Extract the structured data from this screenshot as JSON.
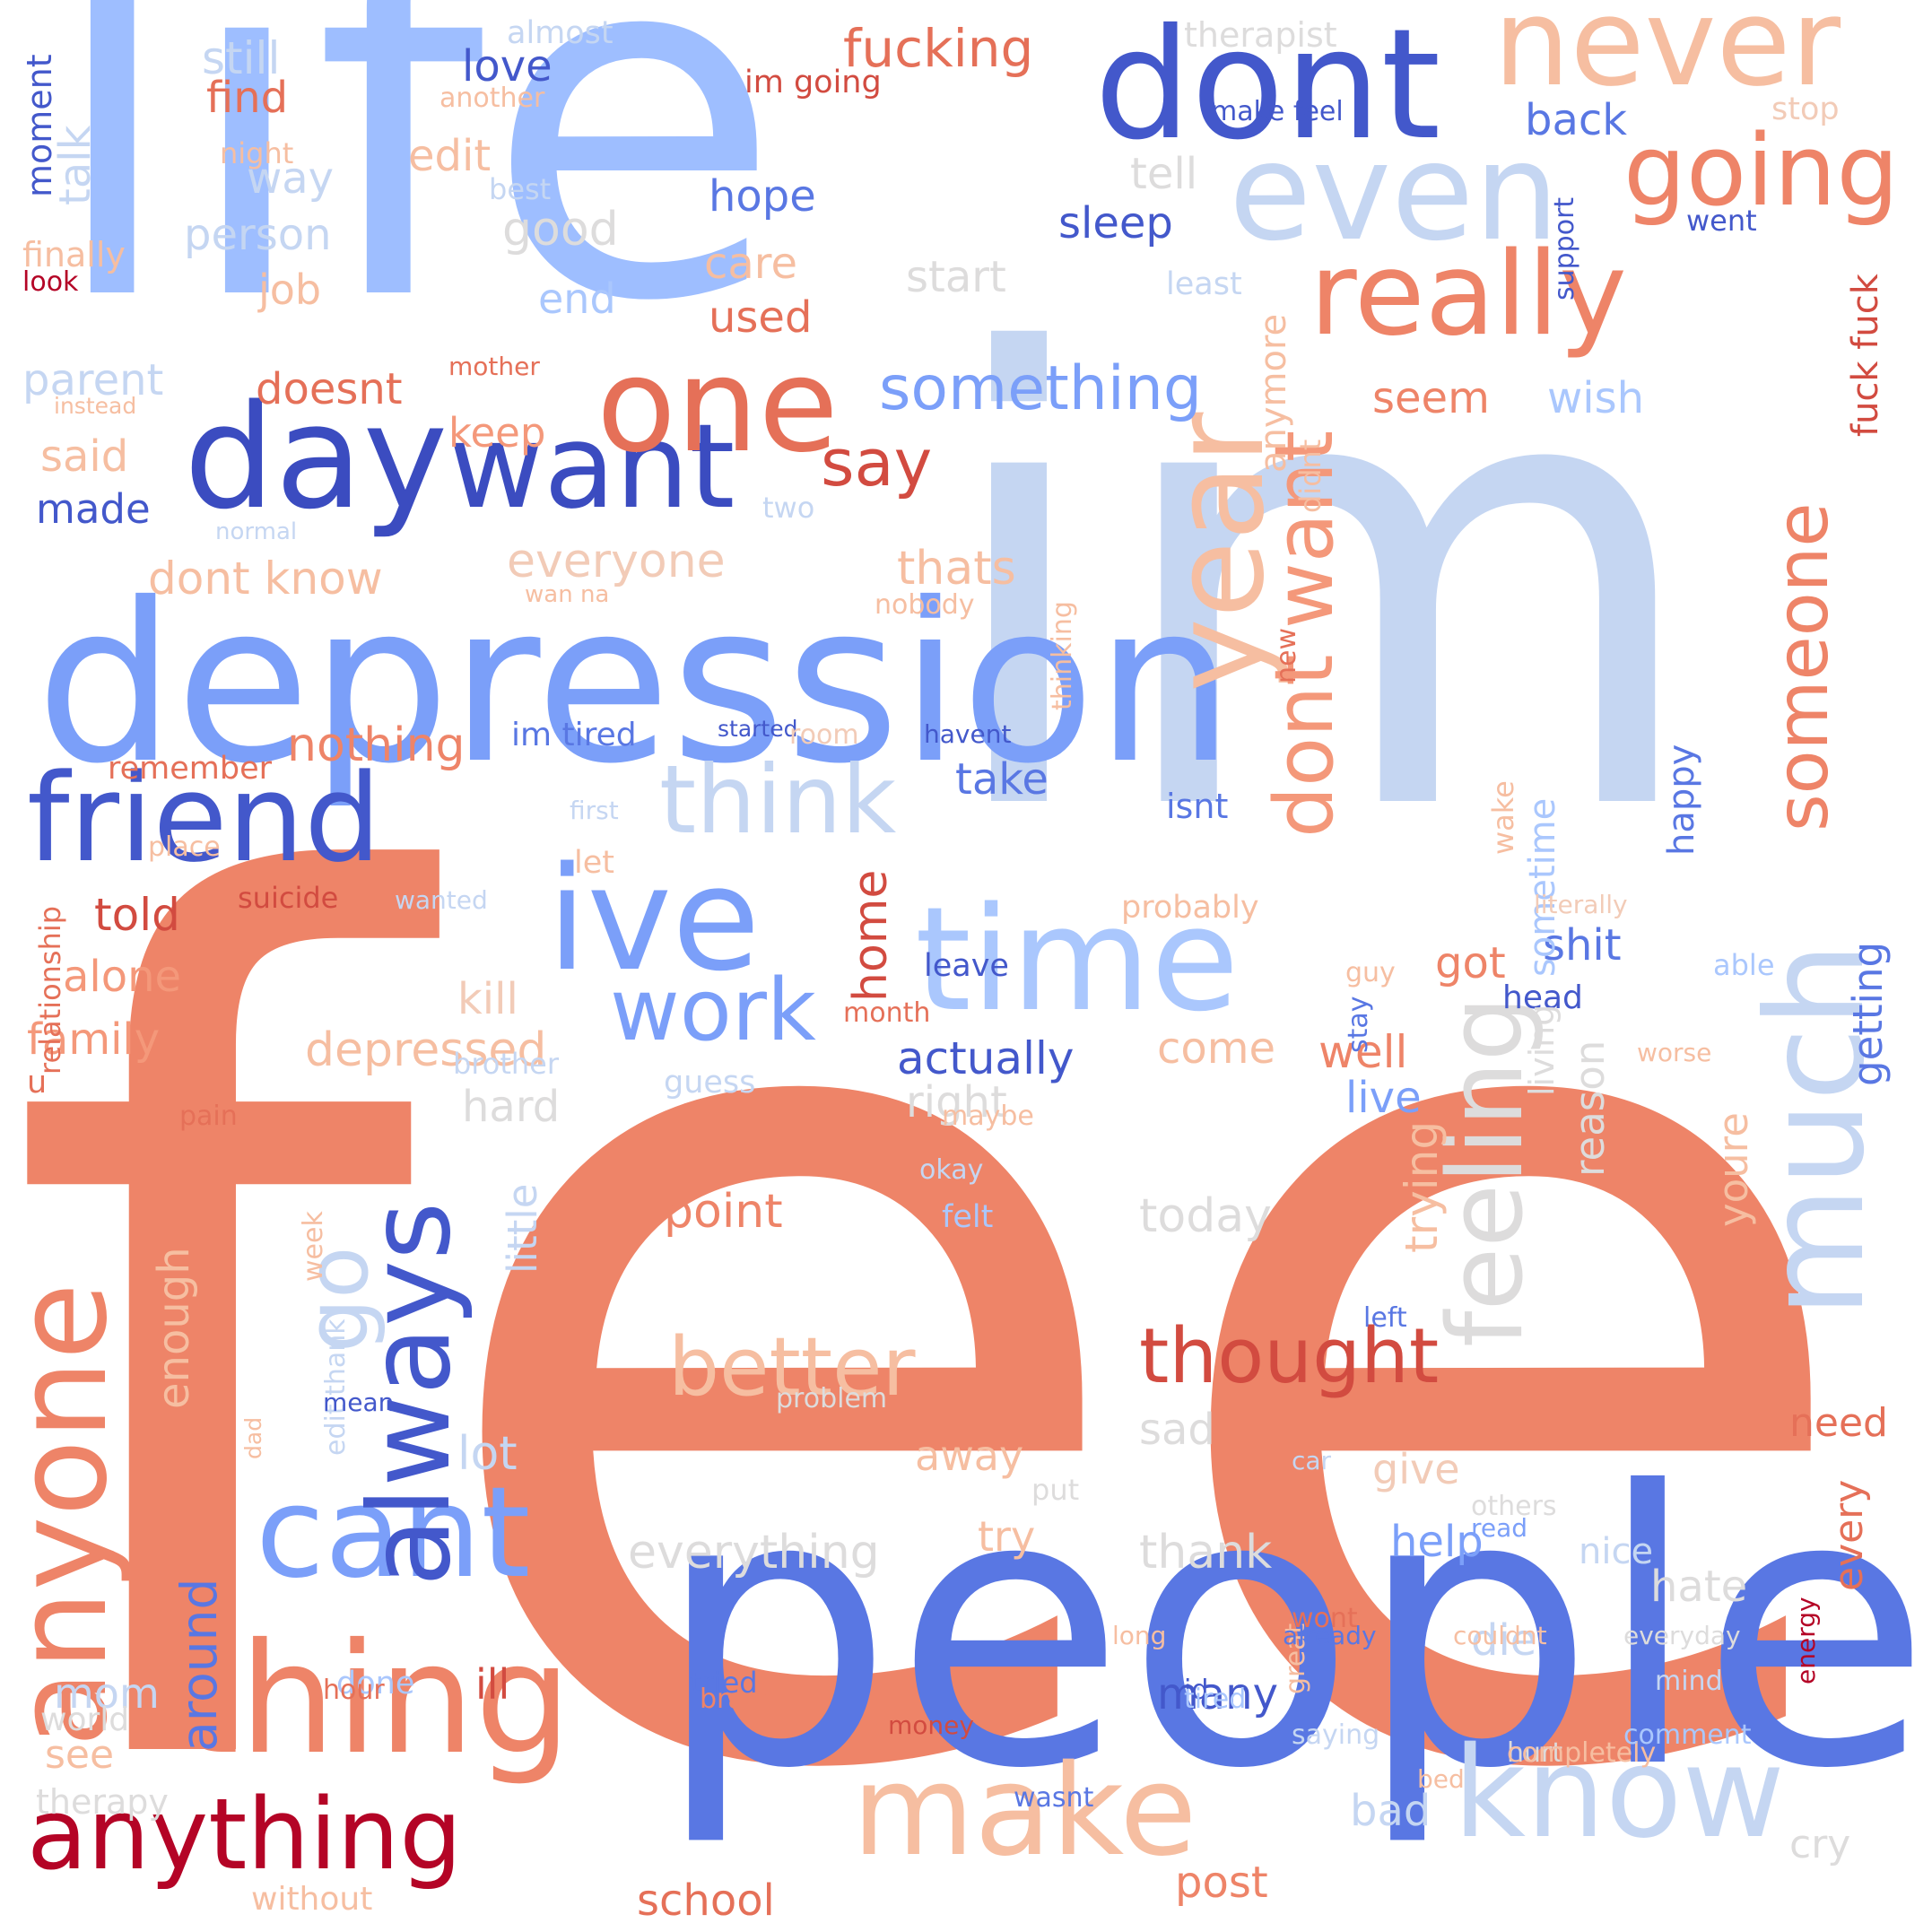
{
  "colors": {
    "background": "#ffffff",
    "palette": "coolwarm",
    "dark_red": "#b40426",
    "red": "#d24b40",
    "salmon": "#ee8468",
    "light_salmon": "#f4987a",
    "peach": "#f6bea1",
    "pale_peach": "#f2cbb7",
    "grey": "#dddcdc",
    "pale_blue": "#c5d6f2",
    "light_blue": "#9ebeff",
    "blue": "#7b9ff9",
    "mid_blue": "#5977e3",
    "royal_blue": "#4358cb",
    "dark_blue": "#3b4cc0"
  },
  "words": [
    {
      "text": "feel",
      "color": "#ee8468"
    },
    {
      "text": "im",
      "color": "#c5d6f2"
    },
    {
      "text": "life",
      "color": "#9ebeff"
    },
    {
      "text": "people",
      "color": "#5977e3"
    },
    {
      "text": "depression",
      "color": "#7b9ff9"
    },
    {
      "text": "dont",
      "color": "#4358cb"
    },
    {
      "text": "even",
      "color": "#c5d6f2"
    },
    {
      "text": "never",
      "color": "#f6bea1"
    },
    {
      "text": "really",
      "color": "#ee8468"
    },
    {
      "text": "going",
      "color": "#ee8468"
    },
    {
      "text": "day",
      "color": "#3b4cc0"
    },
    {
      "text": "want",
      "color": "#3b4cc0"
    },
    {
      "text": "one",
      "color": "#e57058"
    },
    {
      "text": "friend",
      "color": "#4358cb"
    },
    {
      "text": "ive",
      "color": "#7b9ff9"
    },
    {
      "text": "time",
      "color": "#aac7fd"
    },
    {
      "text": "thing",
      "color": "#ee8468"
    },
    {
      "text": "anything",
      "color": "#b40426"
    },
    {
      "text": "cant",
      "color": "#7b9ff9"
    },
    {
      "text": "know",
      "color": "#c5d6f2"
    },
    {
      "text": "make",
      "color": "#f6bea1"
    },
    {
      "text": "anyone",
      "color": "#ee8468"
    },
    {
      "text": "year",
      "color": "#f6bea1"
    },
    {
      "text": "much",
      "color": "#c5d6f2"
    },
    {
      "text": "dont want",
      "color": "#f4987a"
    },
    {
      "text": "someone",
      "color": "#ee8468"
    },
    {
      "text": "feeling",
      "color": "#dddcdc"
    },
    {
      "text": "think",
      "color": "#c5d6f2"
    },
    {
      "text": "work",
      "color": "#7b9ff9"
    },
    {
      "text": "something",
      "color": "#7b9ff9"
    },
    {
      "text": "thought",
      "color": "#d24b40"
    },
    {
      "text": "better",
      "color": "#f6bea1"
    },
    {
      "text": "always",
      "color": "#4358cb"
    },
    {
      "text": "go",
      "color": "#c5d6f2"
    },
    {
      "text": "say",
      "color": "#d24b40"
    },
    {
      "text": "fucking",
      "color": "#e57058"
    },
    {
      "text": "still",
      "color": "#c5d6f2"
    },
    {
      "text": "love",
      "color": "#4358cb"
    },
    {
      "text": "find",
      "color": "#e57058"
    },
    {
      "text": "edit",
      "color": "#f6bea1"
    },
    {
      "text": "way",
      "color": "#c5d6f2"
    },
    {
      "text": "person",
      "color": "#c5d6f2"
    },
    {
      "text": "job",
      "color": "#f6bea1"
    },
    {
      "text": "talk",
      "color": "#c5d6f2"
    },
    {
      "text": "good",
      "color": "#dddcdc"
    },
    {
      "text": "end",
      "color": "#aac7fd"
    },
    {
      "text": "hope",
      "color": "#5977e3"
    },
    {
      "text": "care",
      "color": "#f6bea1"
    },
    {
      "text": "used",
      "color": "#e57058"
    },
    {
      "text": "back",
      "color": "#5977e3"
    },
    {
      "text": "sleep",
      "color": "#4358cb"
    },
    {
      "text": "tell",
      "color": "#dddcdc"
    },
    {
      "text": "start",
      "color": "#dddcdc"
    },
    {
      "text": "parent",
      "color": "#c5d6f2"
    },
    {
      "text": "doesnt",
      "color": "#e57058"
    },
    {
      "text": "keep",
      "color": "#f4987a"
    },
    {
      "text": "said",
      "color": "#f6bea1"
    },
    {
      "text": "made",
      "color": "#4358cb"
    },
    {
      "text": "dont know",
      "color": "#f6bea1"
    },
    {
      "text": "everyone",
      "color": "#f2cbb7"
    },
    {
      "text": "thats",
      "color": "#f6bea1"
    },
    {
      "text": "seem",
      "color": "#ee8468"
    },
    {
      "text": "wish",
      "color": "#aac7fd"
    },
    {
      "text": "nothing",
      "color": "#ee8468"
    },
    {
      "text": "take",
      "color": "#5977e3"
    },
    {
      "text": "im tired",
      "color": "#5977e3"
    },
    {
      "text": "told",
      "color": "#d24b40"
    },
    {
      "text": "alone",
      "color": "#f4987a"
    },
    {
      "text": "family",
      "color": "#f4987a"
    },
    {
      "text": "kill",
      "color": "#f2cbb7"
    },
    {
      "text": "depressed",
      "color": "#f6bea1"
    },
    {
      "text": "actually",
      "color": "#4358cb"
    },
    {
      "text": "come",
      "color": "#f6bea1"
    },
    {
      "text": "well",
      "color": "#ee8468"
    },
    {
      "text": "right",
      "color": "#dddcdc"
    },
    {
      "text": "hard",
      "color": "#dddcdc"
    },
    {
      "text": "live",
      "color": "#7b9ff9"
    },
    {
      "text": "got",
      "color": "#ee8468"
    },
    {
      "text": "shit",
      "color": "#5977e3"
    },
    {
      "text": "head",
      "color": "#4358cb"
    },
    {
      "text": "home",
      "color": "#d24b40"
    },
    {
      "text": "point",
      "color": "#ee8468"
    },
    {
      "text": "today",
      "color": "#dddcdc"
    },
    {
      "text": "sad",
      "color": "#dddcdc"
    },
    {
      "text": "give",
      "color": "#f2cbb7"
    },
    {
      "text": "away",
      "color": "#f6bea1"
    },
    {
      "text": "need",
      "color": "#e57058"
    },
    {
      "text": "every",
      "color": "#e57058"
    },
    {
      "text": "lot",
      "color": "#c5d6f2"
    },
    {
      "text": "try",
      "color": "#f6bea1"
    },
    {
      "text": "everything",
      "color": "#dddcdc"
    },
    {
      "text": "thank",
      "color": "#dddcdc"
    },
    {
      "text": "help",
      "color": "#7b9ff9"
    },
    {
      "text": "hate",
      "color": "#dddcdc"
    },
    {
      "text": "die",
      "color": "#c5d6f2"
    },
    {
      "text": "many",
      "color": "#4358cb"
    },
    {
      "text": "bad",
      "color": "#c5d6f2"
    },
    {
      "text": "cry",
      "color": "#dddcdc"
    },
    {
      "text": "school",
      "color": "#e57058"
    },
    {
      "text": "post",
      "color": "#ee8468"
    },
    {
      "text": "mom",
      "color": "#c5d6f2"
    },
    {
      "text": "ill",
      "color": "#d24b40"
    },
    {
      "text": "see",
      "color": "#f6bea1"
    },
    {
      "text": "world",
      "color": "#dddcdc"
    },
    {
      "text": "therapy",
      "color": "#dddcdc"
    },
    {
      "text": "without",
      "color": "#f6bea1"
    },
    {
      "text": "around",
      "color": "#5977e3"
    },
    {
      "text": "enough",
      "color": "#f6bea1"
    },
    {
      "text": "little",
      "color": "#c5d6f2"
    },
    {
      "text": "trying",
      "color": "#f6bea1"
    },
    {
      "text": "reason",
      "color": "#dddcdc"
    },
    {
      "text": "living",
      "color": "#dddcdc"
    },
    {
      "text": "sometime",
      "color": "#aac7fd"
    },
    {
      "text": "happy",
      "color": "#5977e3"
    },
    {
      "text": "youre",
      "color": "#f6bea1"
    },
    {
      "text": "getting",
      "color": "#5977e3"
    },
    {
      "text": "fuck fuck",
      "color": "#d24b40"
    },
    {
      "text": "anymore",
      "color": "#f6bea1"
    },
    {
      "text": "didnt",
      "color": "#f6bea1"
    },
    {
      "text": "new",
      "color": "#e57058"
    },
    {
      "text": "thinking",
      "color": "#f6bea1"
    },
    {
      "text": "wake",
      "color": "#f6bea1"
    },
    {
      "text": "moment",
      "color": "#4358cb"
    },
    {
      "text": "finally",
      "color": "#f6bea1"
    },
    {
      "text": "look",
      "color": "#b40426"
    },
    {
      "text": "night",
      "color": "#f6bea1"
    },
    {
      "text": "best",
      "color": "#c5d6f2"
    },
    {
      "text": "almost",
      "color": "#c5d6f2"
    },
    {
      "text": "another",
      "color": "#f6bea1"
    },
    {
      "text": "im going",
      "color": "#d24b40"
    },
    {
      "text": "therapist",
      "color": "#dddcdc"
    },
    {
      "text": "make feel",
      "color": "#4358cb"
    },
    {
      "text": "stop",
      "color": "#f2cbb7"
    },
    {
      "text": "went",
      "color": "#4358cb"
    },
    {
      "text": "support",
      "color": "#4358cb"
    },
    {
      "text": "least",
      "color": "#c5d6f2"
    },
    {
      "text": "mother",
      "color": "#e57058"
    },
    {
      "text": "instead",
      "color": "#f6bea1"
    },
    {
      "text": "two",
      "color": "#c5d6f2"
    },
    {
      "text": "normal",
      "color": "#c5d6f2"
    },
    {
      "text": "wan na",
      "color": "#f6bea1"
    },
    {
      "text": "nobody",
      "color": "#f6bea1"
    },
    {
      "text": "started",
      "color": "#4358cb"
    },
    {
      "text": "room",
      "color": "#f2cbb7"
    },
    {
      "text": "havent",
      "color": "#4358cb"
    },
    {
      "text": "remember",
      "color": "#e57058"
    },
    {
      "text": "first",
      "color": "#c5d6f2"
    },
    {
      "text": "place",
      "color": "#f6bea1"
    },
    {
      "text": "let",
      "color": "#f6bea1"
    },
    {
      "text": "isnt",
      "color": "#5977e3"
    },
    {
      "text": "suicide",
      "color": "#d24b40"
    },
    {
      "text": "wanted",
      "color": "#c5d6f2"
    },
    {
      "text": "probably",
      "color": "#f6bea1"
    },
    {
      "text": "literally",
      "color": "#f2cbb7"
    },
    {
      "text": "relationship",
      "color": "#e57058"
    },
    {
      "text": "leave",
      "color": "#4358cb"
    },
    {
      "text": "guy",
      "color": "#f6bea1"
    },
    {
      "text": "able",
      "color": "#aac7fd"
    },
    {
      "text": "stay",
      "color": "#5977e3"
    },
    {
      "text": "u",
      "color": "#e57058"
    },
    {
      "text": "brother",
      "color": "#c5d6f2"
    },
    {
      "text": "guess",
      "color": "#c5d6f2"
    },
    {
      "text": "worse",
      "color": "#f6bea1"
    },
    {
      "text": "month",
      "color": "#e57058"
    },
    {
      "text": "pain",
      "color": "#e57058"
    },
    {
      "text": "maybe",
      "color": "#f6bea1"
    },
    {
      "text": "okay",
      "color": "#c5d6f2"
    },
    {
      "text": "felt",
      "color": "#aac7fd"
    },
    {
      "text": "week",
      "color": "#f6bea1"
    },
    {
      "text": "edit thank",
      "color": "#c5d6f2"
    },
    {
      "text": "left",
      "color": "#5977e3"
    },
    {
      "text": "others",
      "color": "#dddcdc"
    },
    {
      "text": "mean",
      "color": "#4358cb"
    },
    {
      "text": "problem",
      "color": "#dddcdc"
    },
    {
      "text": "dad",
      "color": "#f6bea1"
    },
    {
      "text": "put",
      "color": "#dddcdc"
    },
    {
      "text": "car",
      "color": "#c5d6f2"
    },
    {
      "text": "nice",
      "color": "#c5d6f2"
    },
    {
      "text": "great",
      "color": "#f6bea1"
    },
    {
      "text": "done",
      "color": "#aac7fd"
    },
    {
      "text": "hour",
      "color": "#e57058"
    },
    {
      "text": "mind",
      "color": "#c5d6f2"
    },
    {
      "text": "brain",
      "color": "#ee8468"
    },
    {
      "text": "tried",
      "color": "#5977e3"
    },
    {
      "text": "id",
      "color": "#4358cb"
    },
    {
      "text": "wont",
      "color": "#e57058"
    },
    {
      "text": "hurt",
      "color": "#dddcdc"
    },
    {
      "text": "energy",
      "color": "#b40426"
    },
    {
      "text": "money",
      "color": "#d24b40"
    },
    {
      "text": "read",
      "color": "#7b9ff9"
    },
    {
      "text": "completely",
      "color": "#f6bea1"
    },
    {
      "text": "comment",
      "color": "#aac7fd"
    },
    {
      "text": "tired",
      "color": "#aac7fd"
    },
    {
      "text": "saying",
      "color": "#c5d6f2"
    },
    {
      "text": "bed",
      "color": "#f6bea1"
    },
    {
      "text": "wasnt",
      "color": "#5977e3"
    },
    {
      "text": "long",
      "color": "#f6bea1"
    },
    {
      "text": "already",
      "color": "#5977e3"
    },
    {
      "text": "couldnt",
      "color": "#f6bea1"
    },
    {
      "text": "everyday",
      "color": "#dddcdc"
    }
  ]
}
